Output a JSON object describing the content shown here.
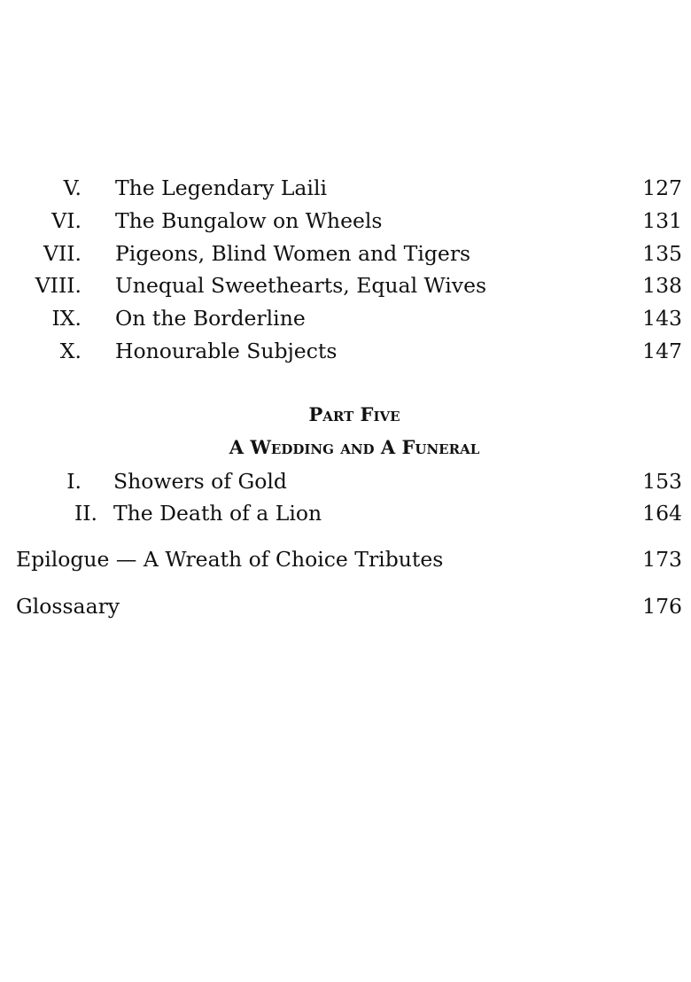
{
  "part_four_entries": [
    {
      "num": "V.",
      "title": "The Legendary Laili",
      "page": "127"
    },
    {
      "num": "VI.",
      "title": "The Bungalow on Wheels",
      "page": "131"
    },
    {
      "num": "VII.",
      "title": "Pigeons, Blind Women and Tigers",
      "page": "135"
    },
    {
      "num": "VIII.",
      "title": "Unequal Sweethearts, Equal Wives",
      "page": "138"
    },
    {
      "num": "IX.",
      "title": "On the Borderline",
      "page": "143"
    },
    {
      "num": "X.",
      "title": "Honourable Subjects",
      "page": "147"
    }
  ],
  "part_five": {
    "label": "Part Five",
    "title": "A Wedding and A Funeral",
    "entries": [
      {
        "num": "I.",
        "title": "Showers of Gold",
        "page": "153"
      },
      {
        "num": "II.",
        "title": "The Death of a Lion",
        "page": "164"
      }
    ]
  },
  "back_matter": [
    {
      "title": "Epilogue — A Wreath of Choice Tributes",
      "page": "173"
    },
    {
      "title": "Glossaary",
      "page": "176"
    }
  ]
}
